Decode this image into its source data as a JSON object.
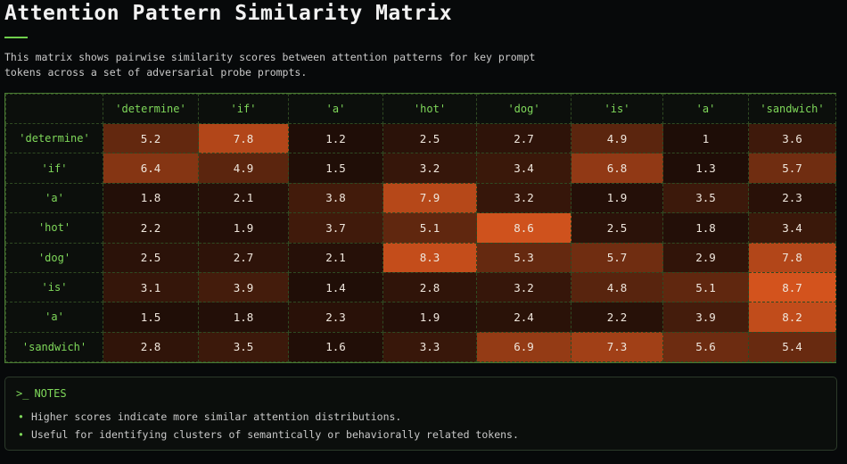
{
  "title": "Attention Pattern Similarity Matrix",
  "description": "This matrix shows pairwise similarity scores between attention patterns for key prompt tokens across a set of adversarial probe prompts.",
  "chart_data": {
    "type": "heatmap",
    "title": "Attention Pattern Similarity Matrix",
    "x_labels": [
      "'determine'",
      "'if'",
      "'a'",
      "'hot'",
      "'dog'",
      "'is'",
      "'a'",
      "'sandwich'"
    ],
    "y_labels": [
      "'determine'",
      "'if'",
      "'a'",
      "'hot'",
      "'dog'",
      "'is'",
      "'a'",
      "'sandwich'"
    ],
    "values": [
      [
        5.2,
        7.8,
        1.2,
        2.5,
        2.7,
        4.9,
        1,
        3.6
      ],
      [
        6.4,
        4.9,
        1.5,
        3.2,
        3.4,
        6.8,
        1.3,
        5.7
      ],
      [
        1.8,
        2.1,
        3.8,
        7.9,
        3.2,
        1.9,
        3.5,
        2.3
      ],
      [
        2.2,
        1.9,
        3.7,
        5.1,
        8.6,
        2.5,
        1.8,
        3.4
      ],
      [
        2.5,
        2.7,
        2.1,
        8.3,
        5.3,
        5.7,
        2.9,
        7.8
      ],
      [
        3.1,
        3.9,
        1.4,
        2.8,
        3.2,
        4.8,
        5.1,
        8.7
      ],
      [
        1.5,
        1.8,
        2.3,
        1.9,
        2.4,
        2.2,
        3.9,
        8.2
      ],
      [
        2.8,
        3.5,
        1.6,
        3.3,
        6.9,
        7.3,
        5.6,
        5.4
      ]
    ],
    "value_range": [
      1,
      8.7
    ],
    "color_low": "#1e0d07",
    "color_high": "#d3531d"
  },
  "notes": {
    "prompt": ">_",
    "heading": "NOTES",
    "bullet": "•",
    "items": [
      "Higher scores indicate more similar attention distributions.",
      "Useful for identifying clusters of semantically or behaviorally related tokens."
    ]
  }
}
